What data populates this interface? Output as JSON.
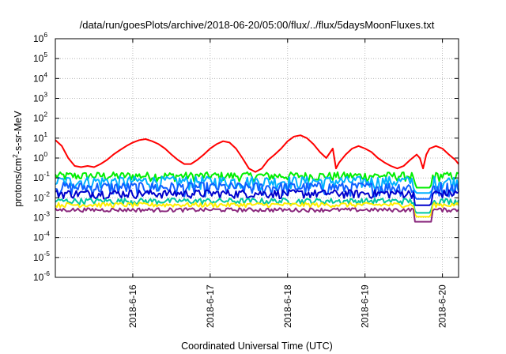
{
  "chart_data": {
    "type": "line",
    "title": "/data/run/goesPlots/archive/2018-06-20/05:00/flux/../flux/5daysMoonFluxes.txt",
    "xlabel": "Coordinated Universal Time (UTC)",
    "ylabel": {
      "prefix": "protons/cm",
      "sup": "2",
      "suffix": "-s-sr-MeV"
    },
    "yscale": "log",
    "ylim": [
      1e-06,
      1000000.0
    ],
    "xlim": [
      "2018-06-15T00:00",
      "2018-06-20T05:00"
    ],
    "grid": true,
    "legend": "none",
    "y_ticks": [
      {
        "value": 1e-06,
        "base": "10",
        "exp": "-6"
      },
      {
        "value": 1e-05,
        "base": "10",
        "exp": "-5"
      },
      {
        "value": 0.0001,
        "base": "10",
        "exp": "-4"
      },
      {
        "value": 0.001,
        "base": "10",
        "exp": "-3"
      },
      {
        "value": 0.01,
        "base": "10",
        "exp": "-2"
      },
      {
        "value": 0.1,
        "base": "10",
        "exp": "-1"
      },
      {
        "value": 1,
        "base": "10",
        "exp": "0"
      },
      {
        "value": 10.0,
        "base": "10",
        "exp": "1"
      },
      {
        "value": 100.0,
        "base": "10",
        "exp": "2"
      },
      {
        "value": 1000.0,
        "base": "10",
        "exp": "3"
      },
      {
        "value": 10000.0,
        "base": "10",
        "exp": "4"
      },
      {
        "value": 100000.0,
        "base": "10",
        "exp": "5"
      },
      {
        "value": 1000000.0,
        "base": "10",
        "exp": "6"
      }
    ],
    "x_ticks": [
      "2018-6-16",
      "2018-6-17",
      "2018-6-18",
      "2018-6-19",
      "2018-6-20"
    ],
    "series": [
      {
        "color": "#ff0000",
        "points": [
          [
            "2018-06-15T00:00",
            8
          ],
          [
            "2018-06-15T02:00",
            4
          ],
          [
            "2018-06-15T04:00",
            1
          ],
          [
            "2018-06-15T06:00",
            0.4
          ],
          [
            "2018-06-15T08:00",
            0.35
          ],
          [
            "2018-06-15T10:00",
            0.4
          ],
          [
            "2018-06-15T12:00",
            0.35
          ],
          [
            "2018-06-15T14:00",
            0.5
          ],
          [
            "2018-06-15T16:00",
            0.8
          ],
          [
            "2018-06-15T18:00",
            1.5
          ],
          [
            "2018-06-15T20:00",
            2.5
          ],
          [
            "2018-06-15T22:00",
            4
          ],
          [
            "2018-06-16T00:00",
            6
          ],
          [
            "2018-06-16T02:00",
            8
          ],
          [
            "2018-06-16T04:00",
            9
          ],
          [
            "2018-06-16T06:00",
            7
          ],
          [
            "2018-06-16T08:00",
            5
          ],
          [
            "2018-06-16T10:00",
            3
          ],
          [
            "2018-06-16T12:00",
            1.5
          ],
          [
            "2018-06-16T14:00",
            0.8
          ],
          [
            "2018-06-16T16:00",
            0.5
          ],
          [
            "2018-06-16T18:00",
            0.5
          ],
          [
            "2018-06-16T20:00",
            0.8
          ],
          [
            "2018-06-16T22:00",
            1.5
          ],
          [
            "2018-06-17T00:00",
            3
          ],
          [
            "2018-06-17T02:00",
            5
          ],
          [
            "2018-06-17T04:00",
            7
          ],
          [
            "2018-06-17T06:00",
            6
          ],
          [
            "2018-06-17T08:00",
            3
          ],
          [
            "2018-06-17T10:00",
            1
          ],
          [
            "2018-06-17T12:00",
            0.3
          ],
          [
            "2018-06-17T14:00",
            0.2
          ],
          [
            "2018-06-17T16:00",
            0.3
          ],
          [
            "2018-06-17T18:00",
            0.8
          ],
          [
            "2018-06-17T20:00",
            1.5
          ],
          [
            "2018-06-17T22:00",
            3
          ],
          [
            "2018-06-18T00:00",
            7
          ],
          [
            "2018-06-18T02:00",
            12
          ],
          [
            "2018-06-18T04:00",
            14
          ],
          [
            "2018-06-18T06:00",
            10
          ],
          [
            "2018-06-18T08:00",
            5
          ],
          [
            "2018-06-18T10:00",
            2
          ],
          [
            "2018-06-18T12:00",
            1
          ],
          [
            "2018-06-18T14:00",
            3
          ],
          [
            "2018-06-18T15:00",
            0.3
          ],
          [
            "2018-06-18T16:00",
            0.6
          ],
          [
            "2018-06-18T18:00",
            1.5
          ],
          [
            "2018-06-18T20:00",
            3
          ],
          [
            "2018-06-18T22:00",
            4
          ],
          [
            "2018-06-19T00:00",
            3
          ],
          [
            "2018-06-19T02:00",
            2
          ],
          [
            "2018-06-19T04:00",
            1
          ],
          [
            "2018-06-19T06:00",
            0.6
          ],
          [
            "2018-06-19T08:00",
            0.4
          ],
          [
            "2018-06-19T10:00",
            0.3
          ],
          [
            "2018-06-19T12:00",
            0.4
          ],
          [
            "2018-06-19T14:00",
            0.8
          ],
          [
            "2018-06-19T16:00",
            1.5
          ],
          [
            "2018-06-19T17:00",
            1
          ],
          [
            "2018-06-19T18:00",
            0.3
          ],
          [
            "2018-06-19T19:00",
            1.5
          ],
          [
            "2018-06-19T20:00",
            3
          ],
          [
            "2018-06-19T22:00",
            4
          ],
          [
            "2018-06-20T00:00",
            3
          ],
          [
            "2018-06-20T02:00",
            1.5
          ],
          [
            "2018-06-20T04:00",
            0.8
          ],
          [
            "2018-06-20T05:00",
            0.5
          ]
        ]
      },
      {
        "color": "#00ee00",
        "base": 0.13,
        "amp": 0.08,
        "dip": 0.0001
      },
      {
        "color": "#00b0ff",
        "base": 0.07,
        "amp": 0.06,
        "dip": 3e-05
      },
      {
        "color": "#1060ff",
        "base": 0.035,
        "amp": 0.03,
        "dip": 1.5e-05
      },
      {
        "color": "#0000cc",
        "base": 0.017,
        "amp": 0.01,
        "dip": 1e-05
      },
      {
        "color": "#00c8a0",
        "base": 0.007,
        "amp": 0.003,
        "dip": 5e-06
      },
      {
        "color": "#ffee00",
        "base": 0.0045,
        "amp": 0.0015,
        "dip": 3e-06
      },
      {
        "color": "#8b2a7e",
        "base": 0.0025,
        "amp": 0.0007,
        "dip": 1.5e-06
      }
    ]
  }
}
